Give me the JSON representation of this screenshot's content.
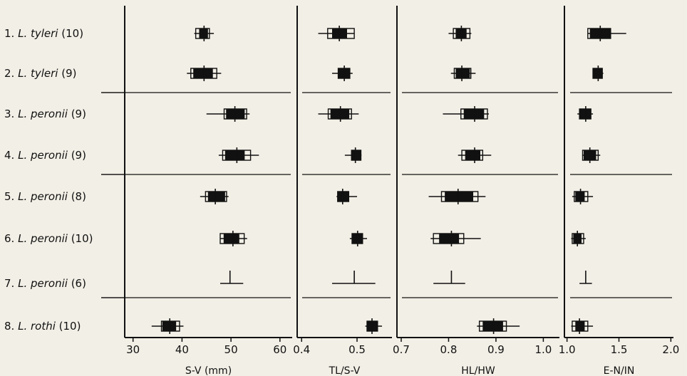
{
  "chart_data": {
    "type": "range-plot",
    "species": [
      {
        "index": "1.",
        "genus": "L.",
        "epithet": "tyleri",
        "n": "(10)"
      },
      {
        "index": "2.",
        "genus": "L.",
        "epithet": "tyleri",
        "n": "(9)"
      },
      {
        "index": "3.",
        "genus": "L.",
        "epithet": "peronii",
        "n": "(9)"
      },
      {
        "index": "4.",
        "genus": "L.",
        "epithet": "peronii",
        "n": "(9)"
      },
      {
        "index": "5.",
        "genus": "L.",
        "epithet": "peronii",
        "n": "(8)"
      },
      {
        "index": "6.",
        "genus": "L.",
        "epithet": "peronii",
        "n": "(10)"
      },
      {
        "index": "7.",
        "genus": "L.",
        "epithet": "peronii",
        "n": "(6)"
      },
      {
        "index": "8.",
        "genus": "L.",
        "epithet": "rothi",
        "n": "(10)"
      }
    ],
    "separators_after": [
      2,
      4,
      7
    ],
    "panels": [
      {
        "xlabel": "S-V (mm)",
        "xlim": [
          28.3,
          62.5
        ],
        "ticks": [
          30,
          40,
          50,
          60
        ],
        "tick_labels": [
          "30",
          "40",
          "50",
          "60"
        ],
        "rows": [
          {
            "min": 42.5,
            "max": 46.5,
            "mean": 44.5,
            "lo": 42.8,
            "hi": 45.6,
            "slo": 43.5,
            "shi": 45.3
          },
          {
            "min": 41.0,
            "max": 48.0,
            "mean": 44.5,
            "lo": 41.8,
            "hi": 47.1,
            "slo": 42.3,
            "shi": 46.3
          },
          {
            "min": 45.0,
            "max": 53.8,
            "mean": 50.8,
            "lo": 48.6,
            "hi": 53.2,
            "slo": 49.0,
            "shi": 52.8
          },
          {
            "min": 47.5,
            "max": 55.7,
            "mean": 51.2,
            "lo": 48.3,
            "hi": 54.0,
            "slo": 48.8,
            "shi": 52.8
          },
          {
            "min": 43.7,
            "max": 49.5,
            "mean": 46.8,
            "lo": 44.8,
            "hi": 49.1,
            "slo": 45.3,
            "shi": 48.8
          },
          {
            "min": 47.8,
            "max": 53.3,
            "mean": 50.4,
            "lo": 47.8,
            "hi": 52.7,
            "slo": 48.5,
            "shi": 51.7
          },
          {
            "min": 47.8,
            "max": 52.5,
            "mean": 49.8
          },
          {
            "min": 33.8,
            "max": 40.3,
            "mean": 37.5,
            "lo": 35.8,
            "hi": 39.5,
            "slo": 36.0,
            "shi": 38.8
          }
        ]
      },
      {
        "xlabel": "TL/S-V",
        "xlim": [
          0.392,
          0.563
        ],
        "ticks": [
          0.4,
          0.5
        ],
        "tick_labels": [
          "0.4",
          "0.5"
        ],
        "rows": [
          {
            "min": 0.43,
            "max": 0.495,
            "mean": 0.468,
            "lo": 0.447,
            "hi": 0.495,
            "slo": 0.455,
            "shi": 0.482
          },
          {
            "min": 0.455,
            "max": 0.492,
            "mean": 0.477,
            "lo": 0.466,
            "hi": 0.487,
            "slo": 0.466,
            "shi": 0.487
          },
          {
            "min": 0.43,
            "max": 0.503,
            "mean": 0.47,
            "lo": 0.448,
            "hi": 0.49,
            "slo": 0.452,
            "shi": 0.486
          },
          {
            "min": 0.478,
            "max": 0.508,
            "mean": 0.497,
            "lo": 0.49,
            "hi": 0.507,
            "slo": 0.49,
            "shi": 0.507
          },
          {
            "min": 0.463,
            "max": 0.5,
            "mean": 0.474,
            "lo": 0.465,
            "hi": 0.485,
            "slo": 0.465,
            "shi": 0.485
          },
          {
            "min": 0.487,
            "max": 0.518,
            "mean": 0.501,
            "lo": 0.491,
            "hi": 0.51,
            "slo": 0.491,
            "shi": 0.51
          },
          {
            "min": 0.455,
            "max": 0.533,
            "mean": 0.495
          },
          {
            "min": 0.515,
            "max": 0.545,
            "mean": 0.527,
            "lo": 0.518,
            "hi": 0.537,
            "slo": 0.518,
            "shi": 0.537
          }
        ]
      },
      {
        "xlabel": "HL/HW",
        "xlim": [
          0.691,
          1.034
        ],
        "ticks": [
          0.7,
          0.8,
          0.9,
          1.0
        ],
        "tick_labels": [
          "0.7",
          "0.8",
          "0.9",
          "1.0"
        ],
        "rows": [
          {
            "min": 0.8,
            "max": 0.848,
            "mean": 0.827,
            "lo": 0.81,
            "hi": 0.845,
            "slo": 0.815,
            "shi": 0.838
          },
          {
            "min": 0.805,
            "max": 0.857,
            "mean": 0.828,
            "lo": 0.812,
            "hi": 0.847,
            "slo": 0.815,
            "shi": 0.845
          },
          {
            "min": 0.788,
            "max": 0.885,
            "mean": 0.855,
            "lo": 0.826,
            "hi": 0.882,
            "slo": 0.832,
            "shi": 0.875
          },
          {
            "min": 0.82,
            "max": 0.89,
            "mean": 0.855,
            "lo": 0.828,
            "hi": 0.872,
            "slo": 0.835,
            "shi": 0.867
          },
          {
            "min": 0.758,
            "max": 0.878,
            "mean": 0.82,
            "lo": 0.785,
            "hi": 0.862,
            "slo": 0.792,
            "shi": 0.852
          },
          {
            "min": 0.762,
            "max": 0.868,
            "mean": 0.806,
            "lo": 0.768,
            "hi": 0.832,
            "slo": 0.78,
            "shi": 0.822
          },
          {
            "min": 0.768,
            "max": 0.835,
            "mean": 0.806
          },
          {
            "min": 0.86,
            "max": 0.95,
            "mean": 0.895,
            "lo": 0.865,
            "hi": 0.922,
            "slo": 0.872,
            "shi": 0.915
          }
        ]
      },
      {
        "xlabel": "E-N/IN",
        "xlim": [
          0.975,
          2.025
        ],
        "ticks": [
          1.0,
          1.5,
          2.0
        ],
        "tick_labels": [
          "1.0",
          "1.5",
          "2.0"
        ],
        "rows": [
          {
            "min": 1.2,
            "max": 1.57,
            "mean": 1.32,
            "lo": 1.2,
            "hi": 1.42,
            "slo": 1.22,
            "shi": 1.42
          },
          {
            "min": 1.25,
            "max": 1.35,
            "mean": 1.3,
            "lo": 1.25,
            "hi": 1.34,
            "slo": 1.25,
            "shi": 1.34
          },
          {
            "min": 1.1,
            "max": 1.25,
            "mean": 1.18,
            "lo": 1.12,
            "hi": 1.23,
            "slo": 1.12,
            "shi": 1.23
          },
          {
            "min": 1.15,
            "max": 1.32,
            "mean": 1.22,
            "lo": 1.15,
            "hi": 1.3,
            "slo": 1.16,
            "shi": 1.28
          },
          {
            "min": 1.05,
            "max": 1.25,
            "mean": 1.13,
            "lo": 1.07,
            "hi": 1.2,
            "slo": 1.08,
            "shi": 1.17
          },
          {
            "min": 1.04,
            "max": 1.18,
            "mean": 1.1,
            "lo": 1.05,
            "hi": 1.16,
            "slo": 1.06,
            "shi": 1.14
          },
          {
            "min": 1.12,
            "max": 1.24,
            "mean": 1.18
          },
          {
            "min": 1.04,
            "max": 1.25,
            "mean": 1.12,
            "lo": 1.05,
            "hi": 1.2,
            "slo": 1.08,
            "shi": 1.17
          }
        ]
      }
    ]
  }
}
